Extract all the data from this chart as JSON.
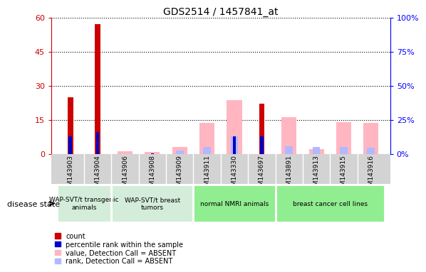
{
  "title": "GDS2514 / 1457841_at",
  "samples": [
    "GSM143903",
    "GSM143904",
    "GSM143906",
    "GSM143908",
    "GSM143909",
    "GSM143911",
    "GSM143330",
    "GSM143697",
    "GSM143891",
    "GSM143913",
    "GSM143915",
    "GSM143916"
  ],
  "count": [
    25,
    57,
    0,
    0,
    0,
    0,
    0,
    22,
    0,
    0,
    0,
    0
  ],
  "percentile_rank": [
    13,
    16,
    0,
    0.5,
    0,
    0,
    13,
    13,
    0,
    0,
    0,
    0
  ],
  "absent_value": [
    0,
    0,
    1.0,
    0.7,
    3.0,
    13.5,
    23.5,
    0,
    16,
    2.0,
    14,
    13.5
  ],
  "absent_rank": [
    0,
    0,
    0,
    0,
    2.5,
    5,
    13,
    0,
    5.5,
    5,
    5,
    4.5
  ],
  "ylim_left": [
    0,
    60
  ],
  "ylim_right": [
    0,
    100
  ],
  "yticks_left": [
    0,
    15,
    30,
    45,
    60
  ],
  "yticks_right": [
    0,
    25,
    50,
    75,
    100
  ],
  "ytick_labels_left": [
    "0",
    "15",
    "30",
    "45",
    "60"
  ],
  "ytick_labels_right": [
    "0%",
    "25%",
    "50%",
    "75%",
    "100%"
  ],
  "groups": [
    {
      "label": "WAP-SVT/t transgenic\nanimals",
      "start": 0,
      "end": 2,
      "color": "#d4edda"
    },
    {
      "label": "WAP-SVT/t breast\ntumors",
      "start": 2,
      "end": 5,
      "color": "#d4edda"
    },
    {
      "label": "normal NMRI animals",
      "start": 5,
      "end": 8,
      "color": "#90ee90"
    },
    {
      "label": "breast cancer cell lines",
      "start": 8,
      "end": 12,
      "color": "#90ee90"
    }
  ],
  "disease_state_label": "disease state",
  "color_count": "#cc0000",
  "color_percentile": "#0000cc",
  "color_absent_value": "#ffb6c1",
  "color_absent_rank": "#b0b8ff",
  "legend_items": [
    {
      "color": "#cc0000",
      "label": "count"
    },
    {
      "color": "#0000cc",
      "label": "percentile rank within the sample"
    },
    {
      "color": "#ffb6c1",
      "label": "value, Detection Call = ABSENT"
    },
    {
      "color": "#b0b8ff",
      "label": "rank, Detection Call = ABSENT"
    }
  ]
}
